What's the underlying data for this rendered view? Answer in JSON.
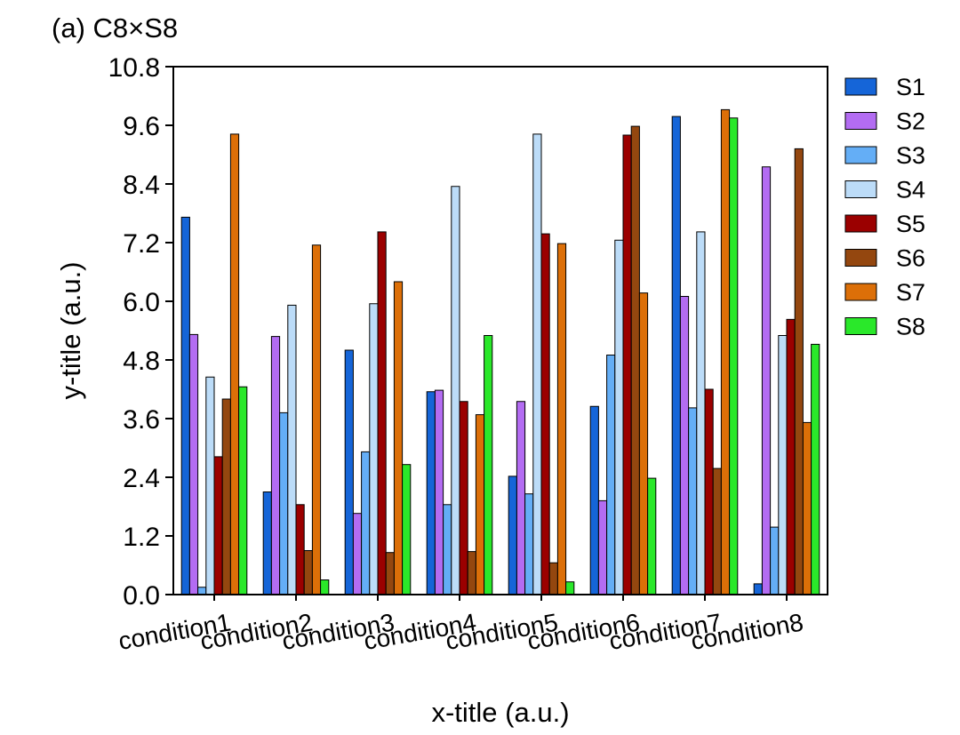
{
  "chart_data": {
    "type": "bar",
    "title": "(a) C8×S8",
    "xlabel": "x-title (a.u.)",
    "ylabel": "y-title (a.u.)",
    "ylim": [
      0,
      10.8
    ],
    "yticks": [
      "0.0",
      "1.2",
      "2.4",
      "3.6",
      "4.8",
      "6.0",
      "7.2",
      "8.4",
      "9.6",
      "10.8"
    ],
    "categories": [
      "condition1",
      "condition2",
      "condition3",
      "condition4",
      "condition5",
      "condition6",
      "condition7",
      "condition8"
    ],
    "legend_position": "right",
    "series": [
      {
        "name": "S1",
        "color": "#1565d8",
        "values": [
          7.72,
          2.1,
          5.0,
          4.15,
          2.42,
          3.85,
          9.78,
          0.22
        ]
      },
      {
        "name": "S2",
        "color": "#b36cf2",
        "values": [
          5.32,
          5.28,
          1.66,
          4.18,
          3.95,
          1.92,
          6.1,
          8.75
        ]
      },
      {
        "name": "S3",
        "color": "#64aef6",
        "values": [
          0.15,
          3.72,
          2.92,
          1.84,
          2.06,
          4.9,
          3.82,
          1.38
        ]
      },
      {
        "name": "S4",
        "color": "#bcdcf8",
        "values": [
          4.45,
          5.92,
          5.95,
          8.35,
          9.42,
          7.25,
          7.42,
          5.3
        ]
      },
      {
        "name": "S5",
        "color": "#9b0000",
        "values": [
          2.82,
          1.84,
          7.42,
          3.95,
          7.38,
          9.4,
          4.2,
          5.63
        ]
      },
      {
        "name": "S6",
        "color": "#94470f",
        "values": [
          4.0,
          0.9,
          0.86,
          0.88,
          0.65,
          9.58,
          2.58,
          9.12
        ]
      },
      {
        "name": "S7",
        "color": "#dc6f08",
        "values": [
          9.42,
          7.15,
          6.4,
          3.68,
          7.18,
          6.17,
          9.92,
          3.52
        ]
      },
      {
        "name": "S8",
        "color": "#2ae82a",
        "values": [
          4.25,
          0.3,
          2.66,
          5.3,
          0.26,
          2.38,
          9.75,
          5.12
        ]
      }
    ]
  }
}
